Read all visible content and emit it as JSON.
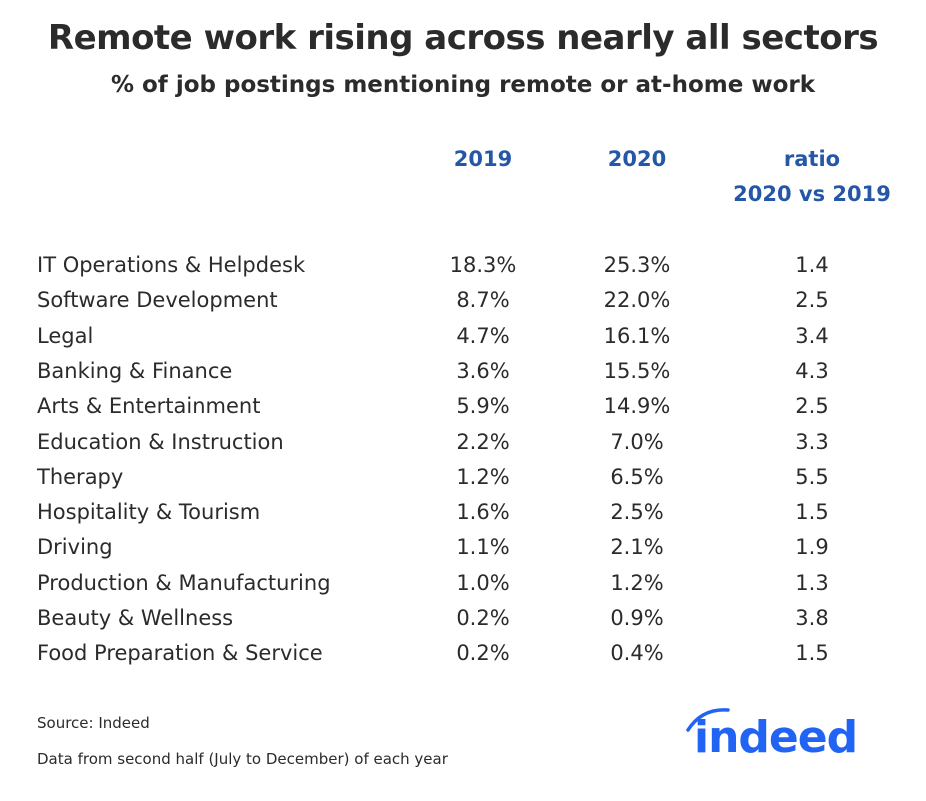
{
  "chart_data": {
    "type": "table",
    "title": "Remote work rising across nearly all sectors",
    "subtitle": "% of job postings mentioning remote or at-home work",
    "columns": [
      "2019",
      "2020",
      "ratio 2020 vs 2019"
    ],
    "header": {
      "c1": "2019",
      "c2": "2020",
      "c3a": "ratio",
      "c3b": "2020 vs 2019"
    },
    "rows": [
      {
        "sector": "IT Operations & Helpdesk",
        "y2019": "18.3%",
        "y2020": "25.3%",
        "ratio": "1.4"
      },
      {
        "sector": "Software Development",
        "y2019": "8.7%",
        "y2020": "22.0%",
        "ratio": "2.5"
      },
      {
        "sector": "Legal",
        "y2019": "4.7%",
        "y2020": "16.1%",
        "ratio": "3.4"
      },
      {
        "sector": "Banking & Finance",
        "y2019": "3.6%",
        "y2020": "15.5%",
        "ratio": "4.3"
      },
      {
        "sector": "Arts & Entertainment",
        "y2019": "5.9%",
        "y2020": "14.9%",
        "ratio": "2.5"
      },
      {
        "sector": "Education & Instruction",
        "y2019": "2.2%",
        "y2020": "7.0%",
        "ratio": "3.3"
      },
      {
        "sector": "Therapy",
        "y2019": "1.2%",
        "y2020": "6.5%",
        "ratio": "5.5"
      },
      {
        "sector": "Hospitality & Tourism",
        "y2019": "1.6%",
        "y2020": "2.5%",
        "ratio": "1.5"
      },
      {
        "sector": "Driving",
        "y2019": "1.1%",
        "y2020": "2.1%",
        "ratio": "1.9"
      },
      {
        "sector": "Production & Manufacturing",
        "y2019": "1.0%",
        "y2020": "1.2%",
        "ratio": "1.3"
      },
      {
        "sector": "Beauty & Wellness",
        "y2019": "0.2%",
        "y2020": "0.9%",
        "ratio": "3.8"
      },
      {
        "sector": "Food Preparation & Service",
        "y2019": "0.2%",
        "y2020": "0.4%",
        "ratio": "1.5"
      }
    ],
    "source": "Source: Indeed",
    "note": "Data from second half (July to December) of each year"
  },
  "logo": {
    "text": "indeed",
    "color": "#2164f3"
  },
  "colors": {
    "header": "#2557a7",
    "text": "#2b2b2b"
  }
}
